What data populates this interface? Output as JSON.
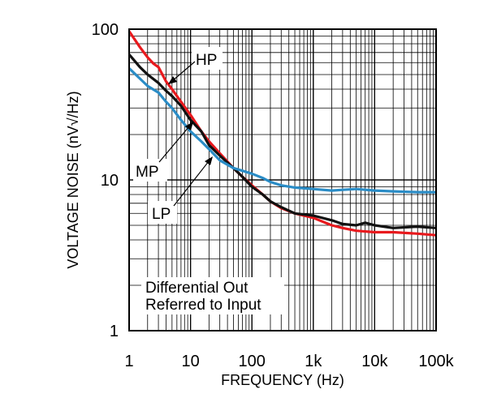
{
  "chart_data": {
    "type": "line",
    "xlabel": "FREQUENCY (Hz)",
    "ylabel": "VOLTAGE NOISE (nV√/Hz)",
    "x_scale": "log",
    "y_scale": "log",
    "xlim": [
      1,
      100000
    ],
    "ylim": [
      1,
      100
    ],
    "x_ticks": [
      {
        "value": 1,
        "label": "1"
      },
      {
        "value": 10,
        "label": "10"
      },
      {
        "value": 100,
        "label": "100"
      },
      {
        "value": 1000,
        "label": "1k"
      },
      {
        "value": 10000,
        "label": "10k"
      },
      {
        "value": 100000,
        "label": "100k"
      }
    ],
    "y_ticks": [
      {
        "value": 1,
        "label": "1"
      },
      {
        "value": 10,
        "label": "10"
      },
      {
        "value": 100,
        "label": "100"
      }
    ],
    "grid": true,
    "series": [
      {
        "name": "HP",
        "color": "#e8191d",
        "points": [
          [
            1,
            97
          ],
          [
            1.5,
            76
          ],
          [
            2,
            65
          ],
          [
            2.5,
            59
          ],
          [
            3,
            56
          ],
          [
            4,
            45
          ],
          [
            5,
            40
          ],
          [
            7,
            33
          ],
          [
            10,
            27
          ],
          [
            15,
            21
          ],
          [
            20,
            18
          ],
          [
            30,
            15
          ],
          [
            50,
            12
          ],
          [
            70,
            10.5
          ],
          [
            100,
            9.2
          ],
          [
            150,
            8
          ],
          [
            200,
            7.2
          ],
          [
            300,
            6.5
          ],
          [
            500,
            6.0
          ],
          [
            1000,
            5.6
          ],
          [
            2000,
            5.0
          ],
          [
            3000,
            4.8
          ],
          [
            5000,
            4.6
          ],
          [
            10000,
            4.5
          ],
          [
            20000,
            4.5
          ],
          [
            50000,
            4.4
          ],
          [
            100000,
            4.3
          ]
        ]
      },
      {
        "name": "MP",
        "color": "#111111",
        "points": [
          [
            1,
            68
          ],
          [
            1.5,
            56
          ],
          [
            2,
            50
          ],
          [
            3,
            44
          ],
          [
            4,
            39
          ],
          [
            5,
            36
          ],
          [
            7,
            31
          ],
          [
            10,
            25
          ],
          [
            15,
            21
          ],
          [
            20,
            17
          ],
          [
            30,
            14.5
          ],
          [
            50,
            12
          ],
          [
            70,
            10.5
          ],
          [
            100,
            9.0
          ],
          [
            150,
            8.0
          ],
          [
            200,
            7.2
          ],
          [
            300,
            6.6
          ],
          [
            500,
            6.0
          ],
          [
            1000,
            5.8
          ],
          [
            2000,
            5.4
          ],
          [
            3000,
            5.1
          ],
          [
            5000,
            5.0
          ],
          [
            7000,
            5.2
          ],
          [
            10000,
            5.0
          ],
          [
            20000,
            4.8
          ],
          [
            50000,
            4.9
          ],
          [
            100000,
            4.8
          ]
        ]
      },
      {
        "name": "LP",
        "color": "#2a8cc6",
        "points": [
          [
            1,
            55
          ],
          [
            1.5,
            47
          ],
          [
            2,
            42
          ],
          [
            3,
            38
          ],
          [
            4,
            33
          ],
          [
            5,
            30
          ],
          [
            7,
            25
          ],
          [
            10,
            21
          ],
          [
            15,
            18
          ],
          [
            20,
            16
          ],
          [
            30,
            13.5
          ],
          [
            50,
            12
          ],
          [
            70,
            11.5
          ],
          [
            100,
            11
          ],
          [
            150,
            10.3
          ],
          [
            200,
            9.7
          ],
          [
            300,
            9.2
          ],
          [
            500,
            8.9
          ],
          [
            1000,
            8.7
          ],
          [
            2000,
            8.5
          ],
          [
            3000,
            8.6
          ],
          [
            5000,
            8.7
          ],
          [
            10000,
            8.5
          ],
          [
            20000,
            8.4
          ],
          [
            50000,
            8.3
          ],
          [
            100000,
            8.3
          ]
        ]
      }
    ],
    "annotations": {
      "hp_label": "HP",
      "mp_label": "MP",
      "lp_label": "LP",
      "box_line1": "Differential Out",
      "box_line2": "Referred to Input"
    }
  }
}
